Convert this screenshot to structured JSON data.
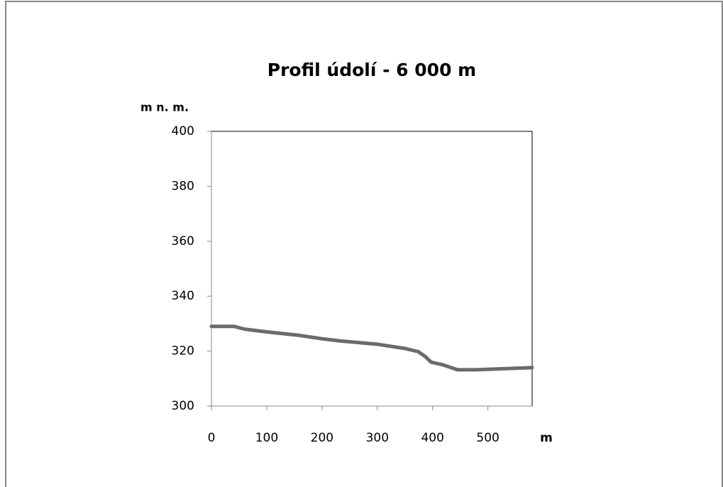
{
  "chart_data": {
    "type": "line",
    "title": "Profil údolí - 6 000 m",
    "x_label": "m",
    "y_label": "m n. m.",
    "x": [
      0,
      41,
      60,
      100,
      156,
      200,
      233,
      300,
      349,
      374,
      387,
      397,
      419,
      445,
      477,
      580
    ],
    "values": [
      329,
      329,
      328,
      327,
      325.8,
      324.5,
      323.7,
      322.5,
      321,
      319.8,
      318,
      316,
      315,
      313.2,
      313.2,
      314
    ],
    "color": "#6b6b6b",
    "xlim": [
      0,
      580
    ],
    "xticks": [
      0,
      100,
      200,
      300,
      400,
      500
    ],
    "ylim": [
      300,
      400
    ],
    "yticks": [
      300,
      320,
      340,
      360,
      380,
      400
    ]
  }
}
